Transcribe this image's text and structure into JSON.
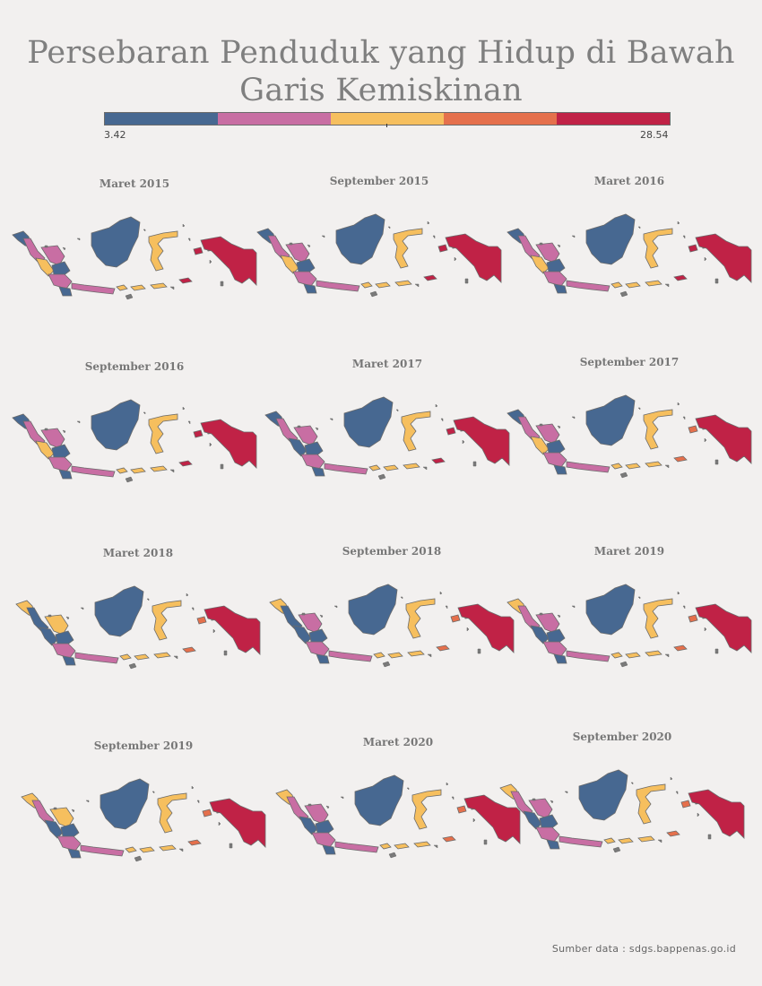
{
  "title": "Persebaran Penduduk yang Hidup di Bawah Garis Kemiskinan",
  "legend": {
    "min": "3.42",
    "max": "28.54",
    "colors": [
      "#476891",
      "#c86ea3",
      "#f6bf5e",
      "#e5704c",
      "#c02246"
    ]
  },
  "source": "Sumber data : sdgs.bappenas.go.id",
  "panels": [
    {
      "label": "Maret 2015",
      "scheme": [
        0,
        1,
        2,
        1,
        0,
        1,
        0,
        0,
        2,
        2,
        1,
        4,
        4
      ]
    },
    {
      "label": "September 2015",
      "scheme": [
        0,
        1,
        2,
        1,
        0,
        1,
        0,
        0,
        2,
        2,
        1,
        4,
        4
      ]
    },
    {
      "label": "Maret 2016",
      "scheme": [
        0,
        1,
        2,
        1,
        0,
        1,
        0,
        0,
        2,
        2,
        1,
        4,
        4
      ]
    },
    {
      "label": "September 2016",
      "scheme": [
        0,
        1,
        2,
        1,
        0,
        1,
        0,
        0,
        2,
        2,
        1,
        4,
        4
      ]
    },
    {
      "label": "Maret 2017",
      "scheme": [
        0,
        1,
        0,
        1,
        0,
        1,
        0,
        0,
        2,
        2,
        1,
        4,
        4
      ]
    },
    {
      "label": "September 2017",
      "scheme": [
        0,
        1,
        2,
        1,
        0,
        1,
        0,
        0,
        2,
        2,
        1,
        3,
        4
      ]
    },
    {
      "label": "Maret 2018",
      "scheme": [
        2,
        0,
        0,
        2,
        0,
        1,
        0,
        0,
        2,
        2,
        1,
        3,
        4
      ]
    },
    {
      "label": "September 2018",
      "scheme": [
        2,
        0,
        0,
        1,
        0,
        1,
        0,
        0,
        2,
        2,
        1,
        3,
        4
      ]
    },
    {
      "label": "Maret 2019",
      "scheme": [
        2,
        1,
        0,
        1,
        0,
        1,
        0,
        0,
        2,
        2,
        1,
        3,
        4
      ]
    },
    {
      "label": "September 2019",
      "scheme": [
        2,
        1,
        0,
        2,
        0,
        1,
        0,
        0,
        2,
        2,
        1,
        3,
        4
      ]
    },
    {
      "label": "Maret 2020",
      "scheme": [
        2,
        1,
        0,
        1,
        0,
        1,
        0,
        0,
        2,
        2,
        1,
        3,
        4
      ]
    },
    {
      "label": "September 2020",
      "scheme": [
        2,
        1,
        0,
        1,
        0,
        1,
        0,
        0,
        2,
        2,
        1,
        3,
        4
      ]
    }
  ]
}
